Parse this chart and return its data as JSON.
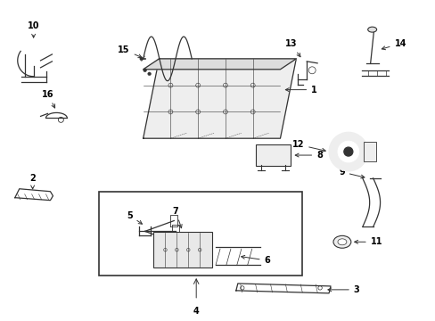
{
  "title": "",
  "bg_color": "#ffffff",
  "line_color": "#333333",
  "text_color": "#000000",
  "fig_width": 4.89,
  "fig_height": 3.6,
  "dpi": 100
}
